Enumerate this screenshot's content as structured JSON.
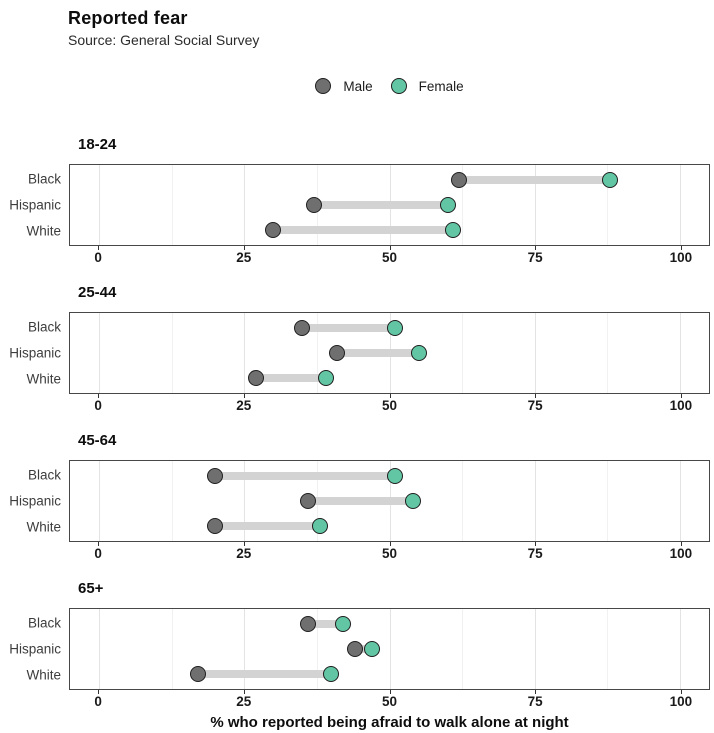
{
  "title": "Reported fear",
  "subtitle": "Source: General Social Survey",
  "legend": {
    "items": [
      {
        "label": "Male",
        "color": "#6f6f6f"
      },
      {
        "label": "Female",
        "color": "#62c6a5"
      }
    ]
  },
  "chart_data": {
    "type": "dumbbell",
    "title": "Reported fear",
    "subtitle": "Source: General Social Survey",
    "xlabel": "% who reported being afraid to walk alone at night",
    "ylabel": "",
    "xlim": [
      -5,
      105
    ],
    "x_major_ticks": [
      0,
      25,
      50,
      75,
      100
    ],
    "x_minor_gridlines": [
      12.5,
      37.5,
      62.5,
      87.5
    ],
    "grid": "vertical-only",
    "legend_position": "top-center",
    "categories": [
      "Black",
      "Hispanic",
      "White"
    ],
    "series_names": [
      "Male",
      "Female"
    ],
    "colors": {
      "male": "#6f6f6f",
      "female": "#62c6a5",
      "connector": "#d3d3d3",
      "dot_stroke": "#1f1f1f",
      "panel_border": "#474747"
    },
    "facets": [
      {
        "age_group": "18-24",
        "rows": [
          {
            "race": "Black",
            "male": 62,
            "female": 88
          },
          {
            "race": "Hispanic",
            "male": 37,
            "female": 60
          },
          {
            "race": "White",
            "male": 30,
            "female": 61
          }
        ]
      },
      {
        "age_group": "25-44",
        "rows": [
          {
            "race": "Black",
            "male": 35,
            "female": 51
          },
          {
            "race": "Hispanic",
            "male": 41,
            "female": 55
          },
          {
            "race": "White",
            "male": 27,
            "female": 39
          }
        ]
      },
      {
        "age_group": "45-64",
        "rows": [
          {
            "race": "Black",
            "male": 20,
            "female": 51
          },
          {
            "race": "Hispanic",
            "male": 36,
            "female": 54
          },
          {
            "race": "White",
            "male": 20,
            "female": 38
          }
        ]
      },
      {
        "age_group": "65+",
        "rows": [
          {
            "race": "Black",
            "male": 36,
            "female": 42
          },
          {
            "race": "Hispanic",
            "male": 44,
            "female": 47
          },
          {
            "race": "White",
            "male": 17,
            "female": 40
          }
        ]
      }
    ]
  }
}
